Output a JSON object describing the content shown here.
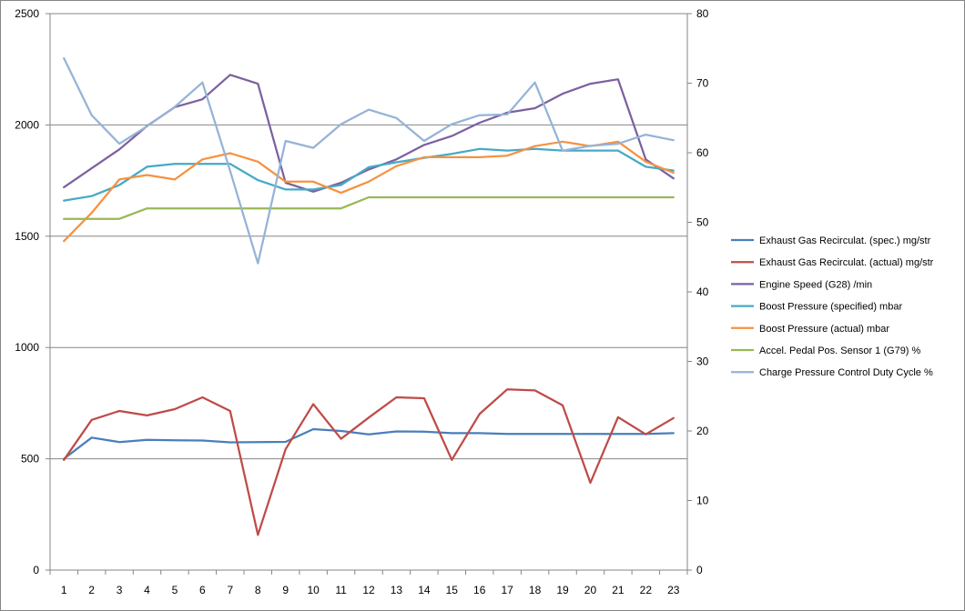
{
  "chart_data": {
    "type": "line",
    "title": "",
    "xlabel": "",
    "ylabel": "",
    "categories": [
      "1",
      "2",
      "3",
      "4",
      "5",
      "6",
      "7",
      "8",
      "9",
      "10",
      "11",
      "12",
      "13",
      "14",
      "15",
      "16",
      "17",
      "18",
      "19",
      "20",
      "21",
      "22",
      "23"
    ],
    "y_left": {
      "min": 0,
      "max": 2500,
      "ticks": [
        0,
        500,
        1000,
        1500,
        2000,
        2500
      ]
    },
    "y_right": {
      "min": 0,
      "max": 80,
      "ticks": [
        0,
        10,
        20,
        30,
        40,
        50,
        60,
        70,
        80
      ]
    },
    "grid": "horizontal",
    "legend_position": "right",
    "series": [
      {
        "name": "Exhaust Gas Recirculat. (spec.)  mg/str",
        "axis": "left",
        "color": "#4a7ebb",
        "values": [
          500,
          595,
          575,
          585,
          583,
          582,
          574,
          575,
          576,
          633,
          625,
          610,
          623,
          622,
          615,
          615,
          612,
          612,
          612,
          612,
          612,
          612,
          615
        ]
      },
      {
        "name": "Exhaust Gas Recirculat. (actual)  mg/str",
        "axis": "left",
        "color": "#be4b48",
        "values": [
          495,
          675,
          715,
          695,
          723,
          776,
          715,
          158,
          543,
          746,
          590,
          685,
          776,
          772,
          495,
          701,
          812,
          807,
          740,
          392,
          687,
          610,
          683
        ]
      },
      {
        "name": "Engine Speed (G28)  /min",
        "axis": "left",
        "color": "#7d60a0",
        "values": [
          1720,
          1805,
          1890,
          1995,
          2080,
          2115,
          2225,
          2185,
          1740,
          1700,
          1740,
          1800,
          1845,
          1910,
          1950,
          2010,
          2055,
          2075,
          2140,
          2185,
          2205,
          1845,
          1760
        ]
      },
      {
        "name": "Boost Pressure (specified)  mbar",
        "axis": "left",
        "color": "#46aac5",
        "values": [
          1660,
          1680,
          1730,
          1812,
          1825,
          1825,
          1825,
          1752,
          1710,
          1710,
          1730,
          1810,
          1832,
          1852,
          1870,
          1892,
          1885,
          1892,
          1885,
          1885,
          1885,
          1812,
          1795
        ]
      },
      {
        "name": "Boost Pressure (actual)  mbar",
        "axis": "left",
        "color": "#f69240",
        "values": [
          1478,
          1605,
          1755,
          1775,
          1755,
          1845,
          1873,
          1835,
          1745,
          1745,
          1695,
          1745,
          1815,
          1855,
          1855,
          1855,
          1862,
          1905,
          1925,
          1905,
          1925,
          1835,
          1785
        ]
      },
      {
        "name": "Accel. Pedal Pos. Sensor 1 (G79)  %",
        "axis": "right",
        "color": "#98b954",
        "values": [
          50.5,
          50.5,
          50.5,
          52,
          52,
          52,
          52,
          52,
          52,
          52,
          52,
          53.6,
          53.6,
          53.6,
          53.6,
          53.6,
          53.6,
          53.6,
          53.6,
          53.6,
          53.6,
          53.6,
          53.6
        ]
      },
      {
        "name": "Charge Pressure Control Duty Cycle  %",
        "axis": "right",
        "color": "#95b3d7",
        "values": [
          73.6,
          65.4,
          61.3,
          63.8,
          66.6,
          70.1,
          57.4,
          44.1,
          61.7,
          60.7,
          64.1,
          66.2,
          65.0,
          61.7,
          64.1,
          65.4,
          65.5,
          70.1,
          60.3,
          61.0,
          61.3,
          62.6,
          61.8
        ]
      }
    ]
  }
}
